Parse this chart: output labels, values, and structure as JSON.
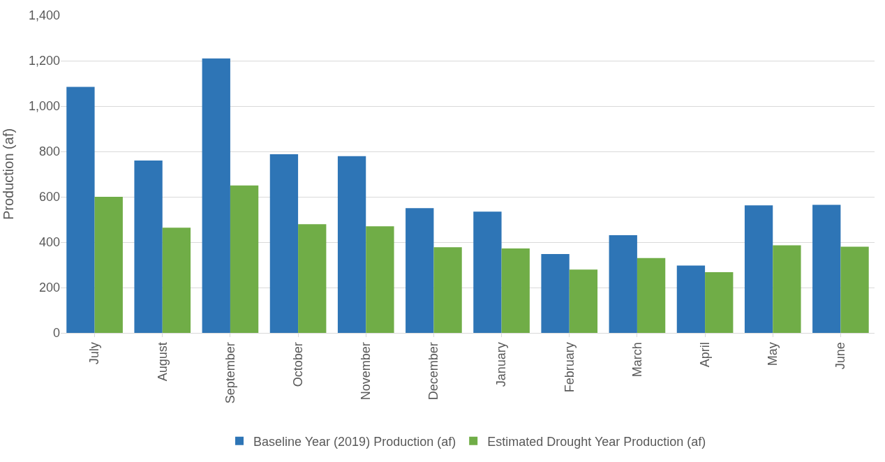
{
  "chart_data": {
    "type": "bar",
    "ylabel": "Production (af)",
    "categories": [
      "July",
      "August",
      "September",
      "October",
      "November",
      "December",
      "January",
      "February",
      "March",
      "April",
      "May",
      "June"
    ],
    "series": [
      {
        "name": "Baseline Year (2019) Production (af)",
        "color": "#2e75b6",
        "values": [
          1085,
          760,
          1210,
          788,
          779,
          550,
          535,
          348,
          431,
          297,
          562,
          565
        ]
      },
      {
        "name": "Estimated Drought Year Production (af)",
        "color": "#70ad47",
        "values": [
          600,
          464,
          650,
          479,
          470,
          378,
          372,
          279,
          330,
          268,
          386,
          380
        ]
      }
    ],
    "ylim": [
      0,
      1400
    ],
    "yticks": [
      0,
      {
        "value": 200,
        "label": "200"
      },
      {
        "value": 400,
        "label": "400"
      },
      {
        "value": 600,
        "label": "600"
      },
      {
        "value": 800,
        "label": "800"
      },
      {
        "value": 1000,
        "label": "1,000"
      },
      {
        "value": 1200,
        "label": "1,200"
      },
      {
        "value": 1400,
        "label": "1,400"
      }
    ],
    "grid": "y",
    "legend": "bottom"
  }
}
